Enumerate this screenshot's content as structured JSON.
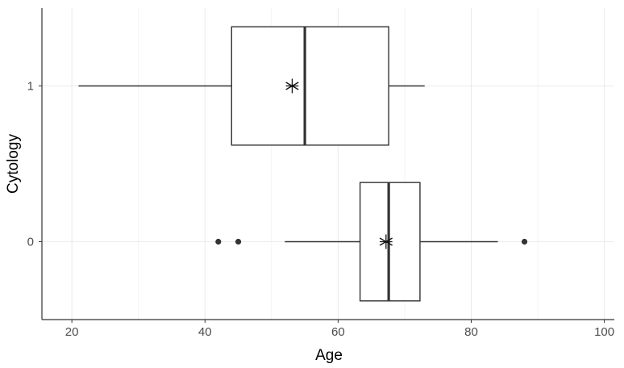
{
  "chart_data": {
    "type": "boxplot",
    "orientation": "horizontal",
    "xlabel": "Age",
    "ylabel": "Cytology",
    "xlim": [
      15.5,
      101.5
    ],
    "x_ticks": [
      20,
      40,
      60,
      80,
      100
    ],
    "x_minor_ticks": [
      30,
      50,
      70,
      90
    ],
    "categories": [
      "0",
      "1"
    ],
    "grid": true,
    "boxes": [
      {
        "category": "0",
        "whisker_low": 52,
        "q1": 63.3,
        "median": 67.6,
        "q3": 72.3,
        "whisker_high": 84,
        "mean": 67.2,
        "outliers": [
          42,
          45,
          88
        ]
      },
      {
        "category": "1",
        "whisker_low": 21,
        "q1": 44,
        "median": 55,
        "q3": 67.6,
        "whisker_high": 73,
        "mean": 53.1,
        "outliers": []
      }
    ],
    "colors": {
      "grid": "#ebebeb",
      "box": "#333333",
      "axis": "#333333"
    }
  }
}
